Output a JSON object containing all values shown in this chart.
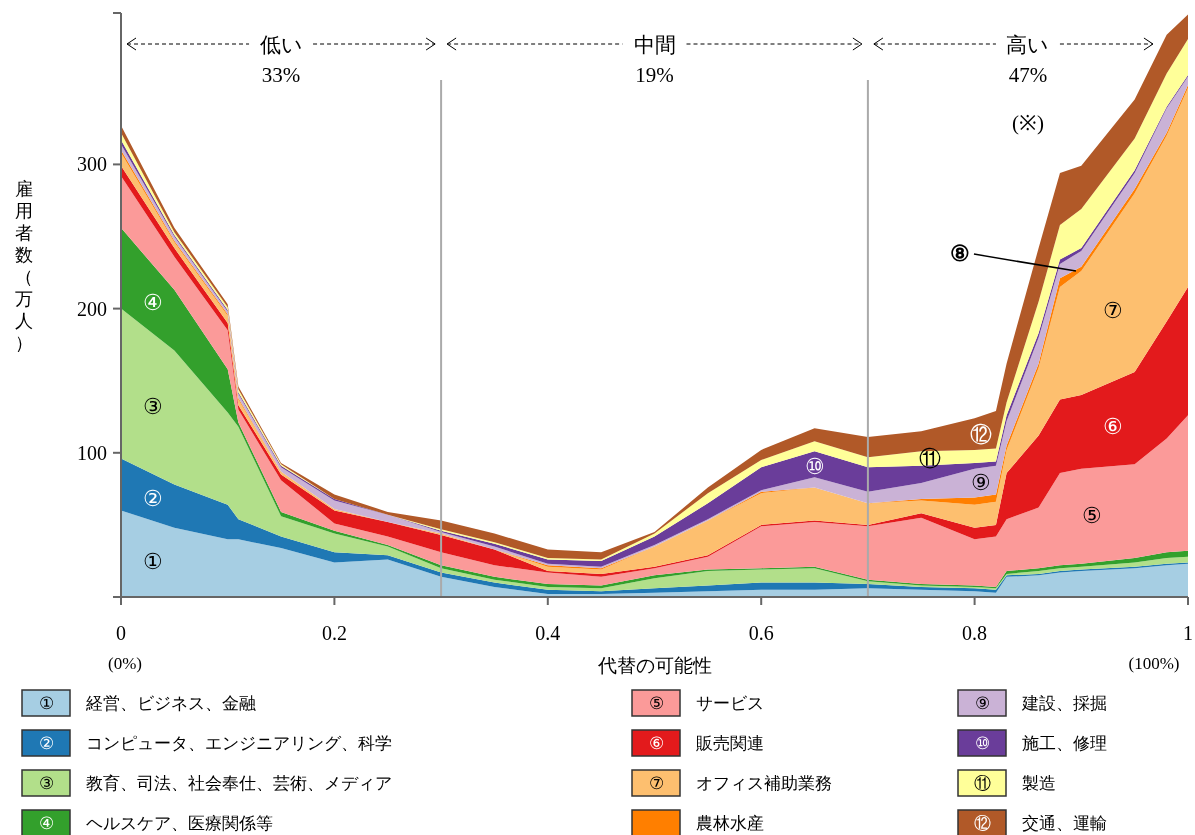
{
  "chart_data": {
    "type": "area",
    "stacked": true,
    "xlabel": "代替の可能性",
    "ylabel": "雇用者数（万人）",
    "x": [
      0,
      0.05,
      0.1,
      0.11,
      0.15,
      0.2,
      0.25,
      0.3,
      0.35,
      0.4,
      0.45,
      0.5,
      0.55,
      0.6,
      0.65,
      0.7,
      0.75,
      0.8,
      0.82,
      0.83,
      0.86,
      0.88,
      0.9,
      0.95,
      0.98,
      1
    ],
    "xlim": [
      0,
      1
    ],
    "xticks": [
      0,
      0.2,
      0.4,
      0.6,
      0.8,
      1
    ],
    "ylim": [
      0,
      405
    ],
    "yticks": [
      {
        "value": 0,
        "label": null
      },
      100,
      200,
      300
    ],
    "legend": "bottom",
    "ref_lines": [
      {
        "axis": "x",
        "value": 0.3,
        "color": "#aaaaaa"
      },
      {
        "axis": "x",
        "value": 0.7,
        "color": "#aaaaaa"
      }
    ],
    "series": [
      {
        "name": "経営、ビジネス、金融",
        "color": "#a6cee3",
        "values": [
          60,
          48,
          40,
          40,
          34,
          24,
          26,
          14,
          7,
          2,
          2,
          3,
          4,
          5,
          5,
          6,
          5,
          4,
          3,
          14,
          15,
          17,
          18,
          20,
          22,
          23
        ]
      },
      {
        "name": "コンピュータ、エンジニアリング、科学",
        "color": "#1f78b4",
        "values": [
          36,
          30,
          24,
          14,
          8,
          7,
          3,
          3,
          3,
          3,
          2,
          3,
          4,
          5,
          5,
          3,
          2,
          2,
          2,
          1,
          1,
          1,
          1,
          1,
          1,
          1
        ]
      },
      {
        "name": "教育、司法、社会奉仕、芸術、メディア",
        "color": "#b2df8a",
        "values": [
          104,
          93,
          64,
          64,
          14,
          13,
          6,
          3,
          2,
          2,
          2,
          7,
          10,
          9,
          10,
          2,
          1,
          1,
          1,
          1,
          2,
          2,
          2,
          3,
          4,
          4
        ]
      },
      {
        "name": "ヘルスケア、医療関係等",
        "color": "#33a02c",
        "values": [
          56,
          42,
          30,
          3,
          3,
          2,
          1,
          2,
          2,
          2,
          2,
          2,
          1,
          1,
          1,
          1,
          1,
          1,
          1,
          2,
          2,
          2,
          2,
          3,
          4,
          4
        ]
      },
      {
        "name": "サービス",
        "color": "#fb9a99",
        "values": [
          36,
          23,
          27,
          9,
          22,
          5,
          6,
          9,
          8,
          8,
          6,
          5,
          9,
          29,
          31,
          37,
          46,
          32,
          35,
          36,
          42,
          64,
          66,
          65,
          79,
          94
        ]
      },
      {
        "name": "販売関連",
        "color": "#e31a1c",
        "values": [
          7,
          6,
          5,
          3,
          4,
          9,
          10,
          12,
          11,
          1,
          2,
          1,
          1,
          1,
          1,
          1,
          3,
          8,
          8,
          32,
          50,
          51,
          51,
          64,
          81,
          89
        ]
      },
      {
        "name": "オフィス補助業務",
        "color": "#fdbf6f",
        "values": [
          9,
          4,
          5,
          4,
          2,
          1,
          0,
          1,
          0,
          3,
          3,
          14,
          24,
          22,
          23,
          15,
          9,
          16,
          16,
          16,
          47,
          78,
          86,
          124,
          129,
          138
        ]
      },
      {
        "name": "農林水産",
        "color": "#ff7f00",
        "values": [
          2,
          1,
          1,
          1,
          0,
          0,
          0,
          0,
          0,
          1,
          1,
          0,
          0,
          1,
          0,
          0,
          1,
          5,
          5,
          3,
          3,
          6,
          3,
          3,
          2,
          2
        ]
      },
      {
        "name": "建設、採掘",
        "color": "#cab2d6",
        "values": [
          4,
          3,
          2,
          3,
          3,
          6,
          5,
          1,
          2,
          1,
          1,
          1,
          1,
          1,
          7,
          8,
          11,
          20,
          20,
          17,
          18,
          10,
          11,
          11,
          17,
          6
        ]
      },
      {
        "name": "施工、修理",
        "color": "#6a3d9a",
        "values": [
          3,
          1,
          1,
          1,
          1,
          1,
          0,
          1,
          2,
          3,
          4,
          6,
          11,
          16,
          18,
          17,
          12,
          4,
          3,
          4,
          3,
          3,
          2,
          2,
          1,
          1
        ]
      },
      {
        "name": "製造",
        "color": "#ffff99",
        "values": [
          5,
          2,
          2,
          2,
          1,
          0,
          0,
          1,
          1,
          1,
          1,
          2,
          7,
          5,
          7,
          7,
          10,
          9,
          9,
          9,
          22,
          24,
          27,
          22,
          23,
          25
        ]
      },
      {
        "name": "交通、運輸",
        "color": "#b15928",
        "values": [
          5,
          3,
          2,
          2,
          1,
          3,
          2,
          6,
          6,
          6,
          5,
          1,
          4,
          7,
          9,
          14,
          14,
          22,
          26,
          27,
          37,
          36,
          30,
          27,
          27,
          17
        ]
      }
    ],
    "annotations": [
      "低い\n33%",
      "中間\n19%",
      "高い\n47%",
      "(※)",
      "(0%)",
      "(100%)",
      "①",
      "②",
      "③",
      "④",
      "⑤",
      "⑥",
      "⑦",
      {
        "text": "⑧",
        "x": 0.895,
        "y": 226
      },
      "⑨",
      "⑩",
      "⑪",
      "⑫"
    ]
  }
}
